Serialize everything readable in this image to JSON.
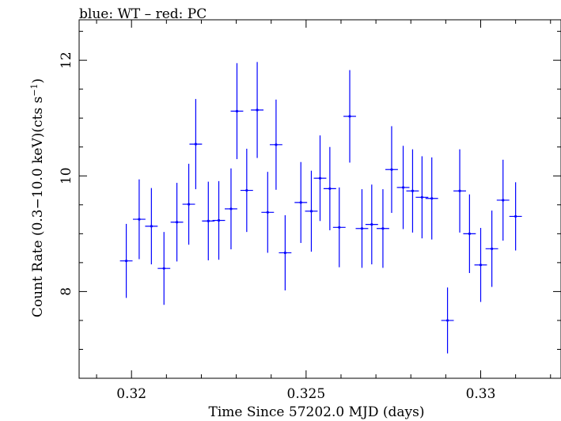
{
  "chart_data": {
    "type": "scatter",
    "title": "blue: WT – red: PC",
    "xlabel": "Time Since 57202.0 MJD (days)",
    "ylabel_main": "Count Rate (0.3−10.0 keV)(cts s",
    "ylabel_sup": "−1",
    "ylabel_end": ")",
    "xlim": [
      0.3185,
      0.3323
    ],
    "ylim": [
      6.5,
      12.7
    ],
    "xticks": [
      {
        "value": 0.32,
        "label": "0.32"
      },
      {
        "value": 0.325,
        "label": "0.325"
      },
      {
        "value": 0.33,
        "label": "0.33"
      }
    ],
    "yticks": [
      {
        "value": 8,
        "label": "8"
      },
      {
        "value": 10,
        "label": "10"
      },
      {
        "value": 12,
        "label": "12"
      }
    ],
    "x_minor_step": 0.001,
    "y_minor_step": 0.5,
    "grid": false,
    "series": [
      {
        "color": "#0000ff",
        "x_halfwidth": 0.00018,
        "points": [
          {
            "x": 0.31985,
            "y": 8.53,
            "yerr": 0.64
          },
          {
            "x": 0.32022,
            "y": 9.25,
            "yerr": 0.69
          },
          {
            "x": 0.32057,
            "y": 9.13,
            "yerr": 0.66
          },
          {
            "x": 0.32093,
            "y": 8.4,
            "yerr": 0.63
          },
          {
            "x": 0.3213,
            "y": 9.2,
            "yerr": 0.68
          },
          {
            "x": 0.32164,
            "y": 9.51,
            "yerr": 0.7
          },
          {
            "x": 0.32184,
            "y": 10.55,
            "yerr": 0.78
          },
          {
            "x": 0.3222,
            "y": 9.22,
            "yerr": 0.68
          },
          {
            "x": 0.3225,
            "y": 9.23,
            "yerr": 0.68
          },
          {
            "x": 0.32285,
            "y": 9.43,
            "yerr": 0.7
          },
          {
            "x": 0.32302,
            "y": 11.12,
            "yerr": 0.83
          },
          {
            "x": 0.3233,
            "y": 9.75,
            "yerr": 0.72
          },
          {
            "x": 0.3236,
            "y": 11.14,
            "yerr": 0.83
          },
          {
            "x": 0.3239,
            "y": 9.37,
            "yerr": 0.7
          },
          {
            "x": 0.32414,
            "y": 10.54,
            "yerr": 0.78
          },
          {
            "x": 0.3244,
            "y": 8.67,
            "yerr": 0.65
          },
          {
            "x": 0.32485,
            "y": 9.54,
            "yerr": 0.7
          },
          {
            "x": 0.32515,
            "y": 9.39,
            "yerr": 0.7
          },
          {
            "x": 0.3254,
            "y": 9.96,
            "yerr": 0.74
          },
          {
            "x": 0.32568,
            "y": 9.78,
            "yerr": 0.72
          },
          {
            "x": 0.32595,
            "y": 9.11,
            "yerr": 0.69
          },
          {
            "x": 0.32625,
            "y": 11.03,
            "yerr": 0.8
          },
          {
            "x": 0.3266,
            "y": 9.09,
            "yerr": 0.68
          },
          {
            "x": 0.32688,
            "y": 9.16,
            "yerr": 0.69
          },
          {
            "x": 0.3272,
            "y": 9.09,
            "yerr": 0.68
          },
          {
            "x": 0.32745,
            "y": 10.11,
            "yerr": 0.75
          },
          {
            "x": 0.32778,
            "y": 9.8,
            "yerr": 0.72
          },
          {
            "x": 0.32805,
            "y": 9.74,
            "yerr": 0.72
          },
          {
            "x": 0.32832,
            "y": 9.63,
            "yerr": 0.71
          },
          {
            "x": 0.3286,
            "y": 9.61,
            "yerr": 0.71
          },
          {
            "x": 0.32905,
            "y": 7.5,
            "yerr": 0.57
          },
          {
            "x": 0.3294,
            "y": 9.74,
            "yerr": 0.72
          },
          {
            "x": 0.32968,
            "y": 9.0,
            "yerr": 0.68
          },
          {
            "x": 0.33,
            "y": 8.46,
            "yerr": 0.64
          },
          {
            "x": 0.33032,
            "y": 8.74,
            "yerr": 0.66
          },
          {
            "x": 0.33064,
            "y": 9.58,
            "yerr": 0.7
          },
          {
            "x": 0.331,
            "y": 9.3,
            "yerr": 0.59
          }
        ]
      }
    ]
  }
}
